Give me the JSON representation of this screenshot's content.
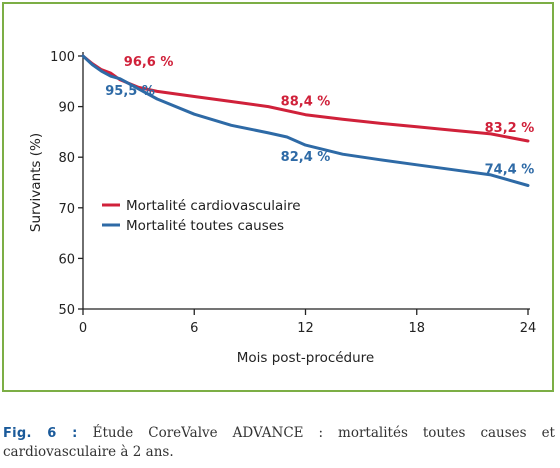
{
  "caption": {
    "prefix": "Fig. 6 :",
    "text": "Étude CoreValve ADVANCE : mortalités toutes causes et cardiovasculaire à 2 ans."
  },
  "chart_data": {
    "type": "line",
    "xlabel": "Mois post-procédure",
    "ylabel": "Survivants (%)",
    "xlim": [
      0,
      24
    ],
    "ylim": [
      50,
      100
    ],
    "xticks": [
      0,
      6,
      12,
      18,
      24
    ],
    "yticks": [
      50,
      60,
      70,
      80,
      90,
      100
    ],
    "grid": false,
    "legend_position": "center-left",
    "series": [
      {
        "name": "Mortalité cardiovasculaire",
        "color": "#d0213a",
        "x": [
          0,
          0.5,
          1,
          1.5,
          2,
          3,
          4,
          6,
          8,
          10,
          12,
          14,
          16,
          18,
          20,
          22,
          24
        ],
        "y": [
          100,
          98.5,
          97.3,
          96.6,
          95.3,
          93.8,
          93,
          92,
          91,
          90,
          88.4,
          87.5,
          86.7,
          86,
          85.3,
          84.6,
          83.2
        ]
      },
      {
        "name": "Mortalité toutes causes",
        "color": "#2e6aa6",
        "x": [
          0,
          0.5,
          1,
          1.5,
          2,
          3,
          4,
          6,
          8,
          10,
          11,
          12,
          14,
          16,
          18,
          20,
          22,
          24
        ],
        "y": [
          100,
          98.3,
          97,
          96,
          95.5,
          93.5,
          91.5,
          88.5,
          86.3,
          84.8,
          84,
          82.4,
          80.6,
          79.5,
          78.5,
          77.5,
          76.5,
          74.4
        ]
      }
    ],
    "annotations": [
      {
        "text": "96,6 %",
        "x": 1.5,
        "y": 96.6,
        "series": 0
      },
      {
        "text": "88,4 %",
        "x": 12,
        "y": 88.4,
        "series": 0
      },
      {
        "text": "83,2 %",
        "x": 24,
        "y": 83.2,
        "series": 0
      },
      {
        "text": "95,5 %",
        "x": 2,
        "y": 95.5,
        "series": 1
      },
      {
        "text": "82,4 %",
        "x": 12,
        "y": 82.4,
        "series": 1
      },
      {
        "text": "74,4 %",
        "x": 24,
        "y": 74.4,
        "series": 1
      }
    ]
  }
}
